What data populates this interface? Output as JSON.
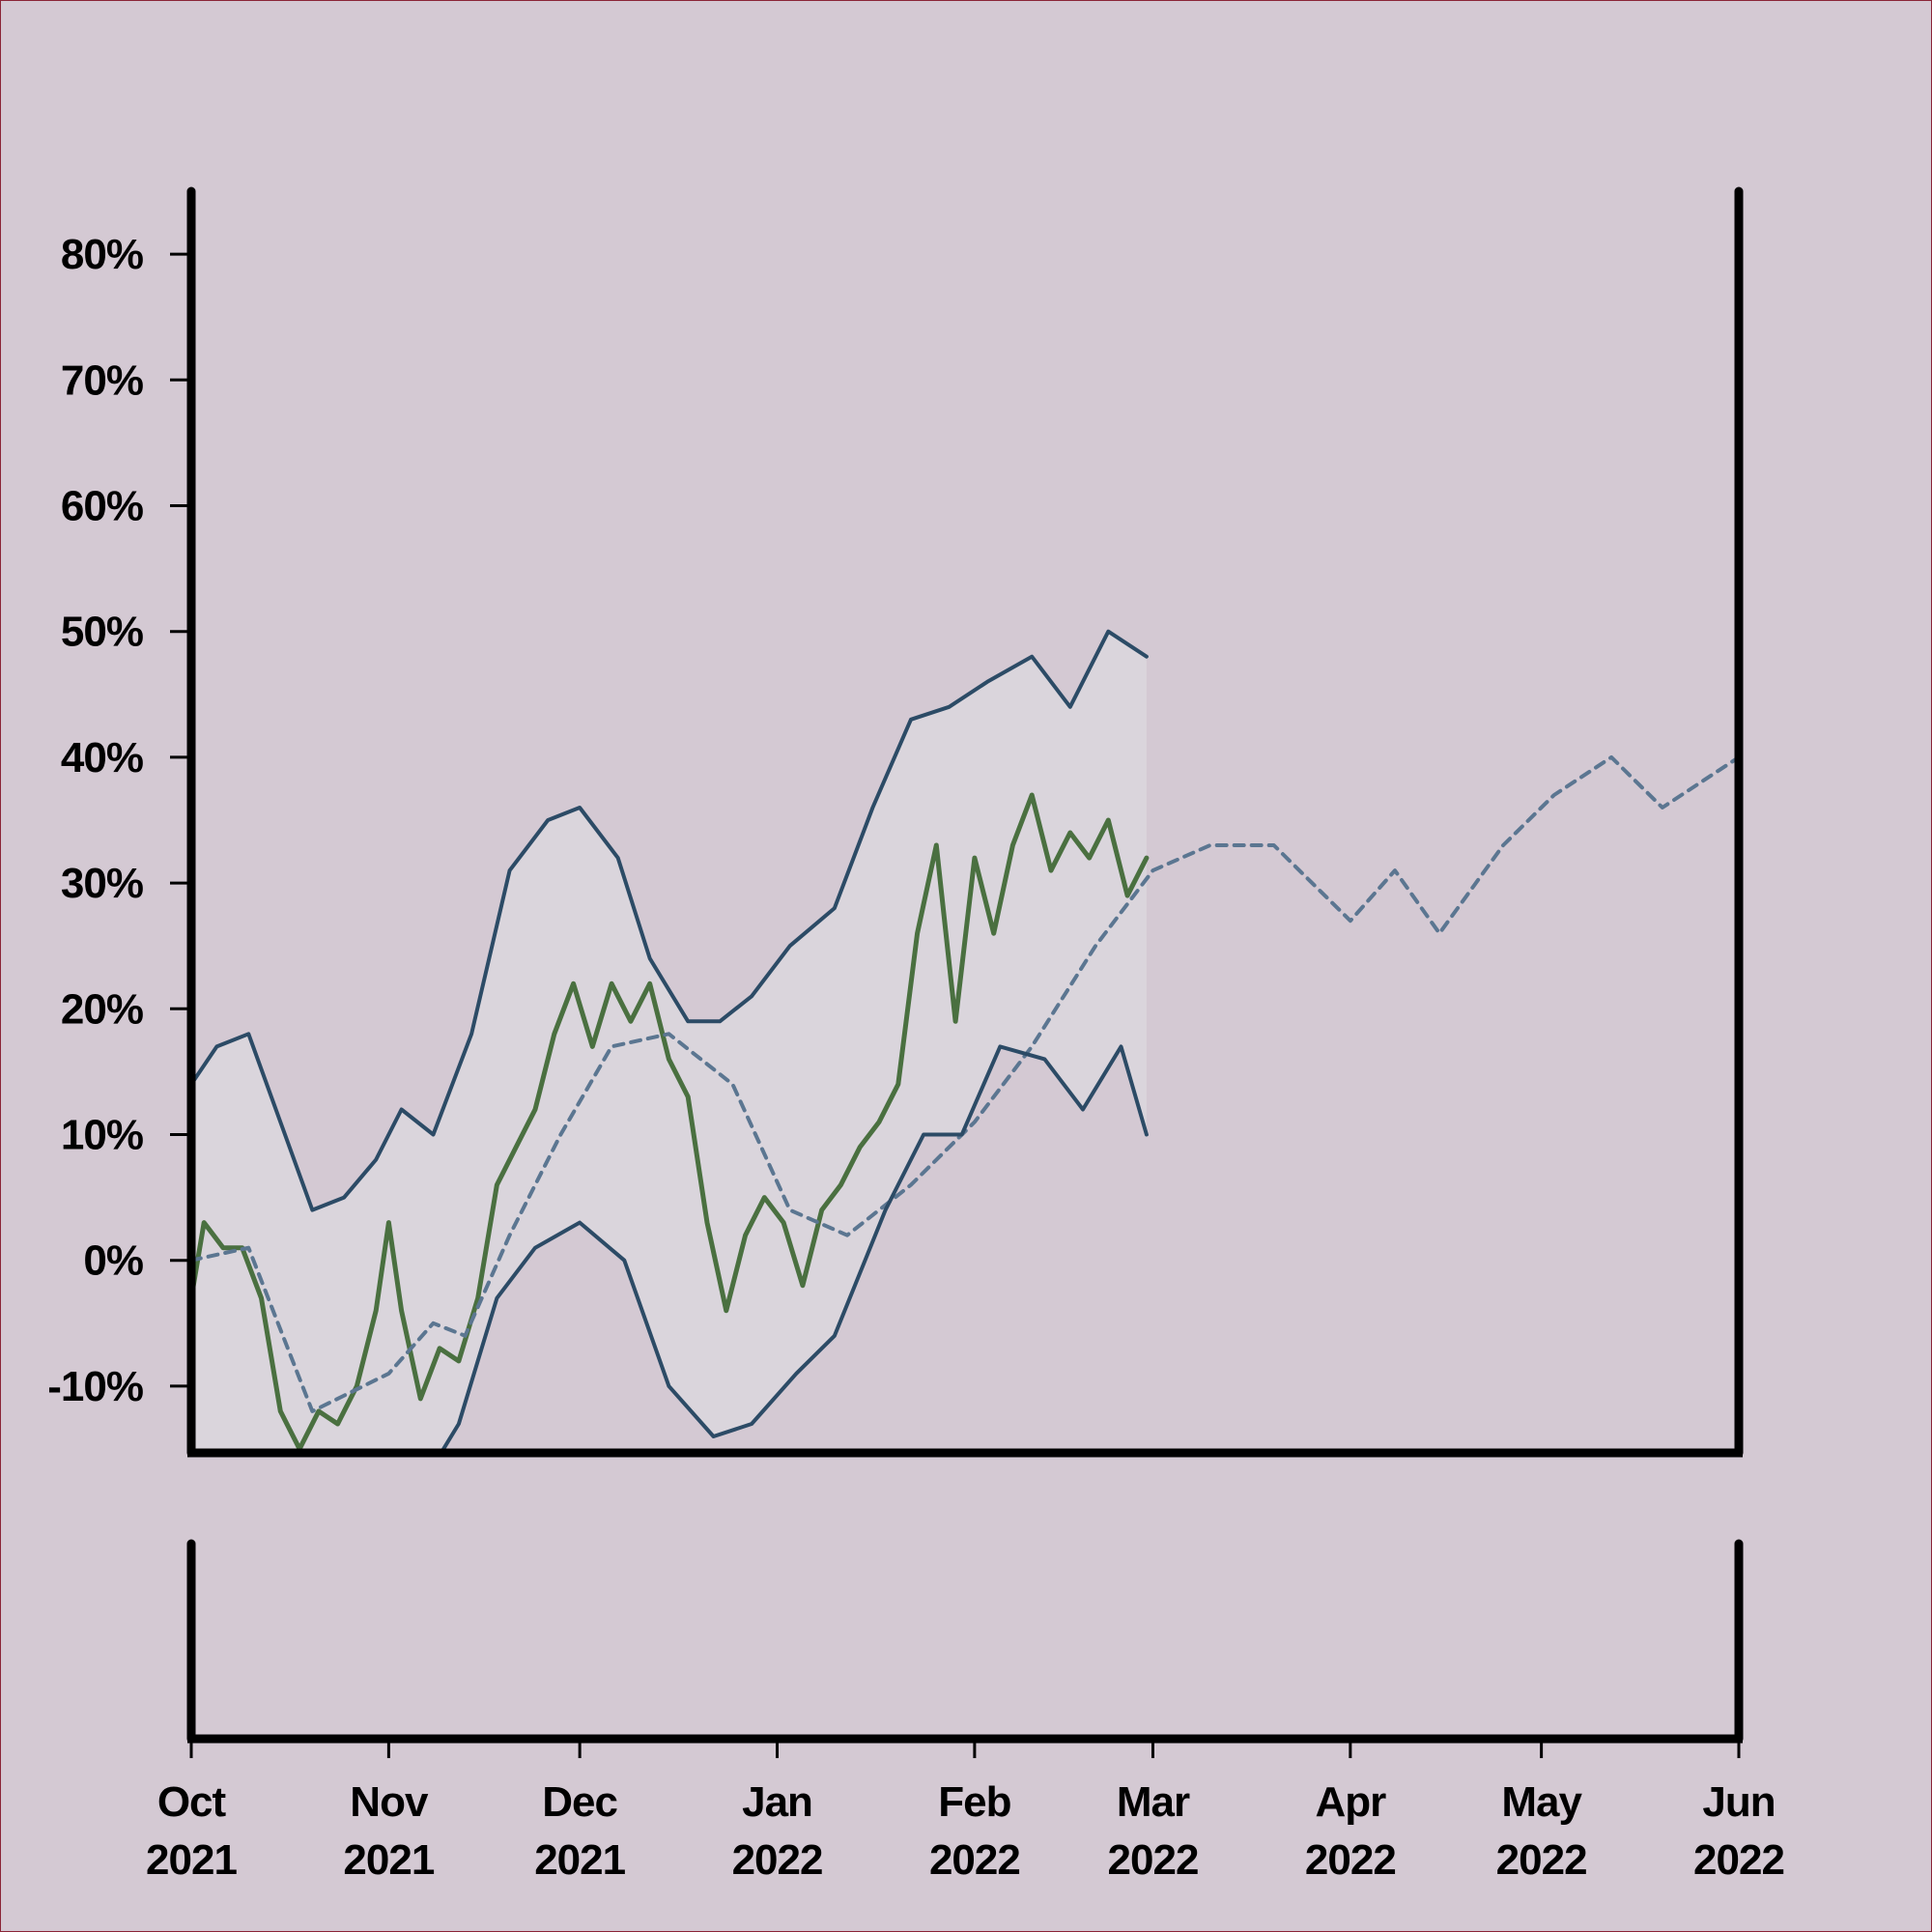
{
  "chart_data": {
    "type": "line",
    "title": "",
    "xlabel": "",
    "ylabel": "",
    "x_range": [
      "2021-10-01",
      "2022-06-01"
    ],
    "ylim": [
      -15,
      85
    ],
    "y_tick_values": [
      -10,
      0,
      10,
      20,
      30,
      40,
      50,
      60,
      70,
      80
    ],
    "y_tick_labels": [
      "-10%",
      "0%",
      "10%",
      "20%",
      "30%",
      "40%",
      "50%",
      "60%",
      "70%",
      "80%"
    ],
    "x_ticks": [
      {
        "date": "2021-10-01",
        "month": "Oct",
        "year": "2021"
      },
      {
        "date": "2021-11-01",
        "month": "Nov",
        "year": "2021"
      },
      {
        "date": "2021-12-01",
        "month": "Dec",
        "year": "2021"
      },
      {
        "date": "2022-01-01",
        "month": "Jan",
        "year": "2022"
      },
      {
        "date": "2022-02-01",
        "month": "Feb",
        "year": "2022"
      },
      {
        "date": "2022-03-01",
        "month": "Mar",
        "year": "2022"
      },
      {
        "date": "2022-04-01",
        "month": "Apr",
        "year": "2022"
      },
      {
        "date": "2022-05-01",
        "month": "May",
        "year": "2022"
      },
      {
        "date": "2022-06-01",
        "month": "Jun",
        "year": "2022"
      }
    ],
    "grid": false,
    "legend": "none",
    "series": [
      {
        "role": "value",
        "style": "solid",
        "color": "#4a7040",
        "points": [
          [
            "2021-10-01",
            -3
          ],
          [
            "2021-10-03",
            3
          ],
          [
            "2021-10-06",
            1
          ],
          [
            "2021-10-09",
            1
          ],
          [
            "2021-10-12",
            -3
          ],
          [
            "2021-10-15",
            -12
          ],
          [
            "2021-10-18",
            -15
          ],
          [
            "2021-10-21",
            -12
          ],
          [
            "2021-10-24",
            -13
          ],
          [
            "2021-10-27",
            -10
          ],
          [
            "2021-10-30",
            -4
          ],
          [
            "2021-11-01",
            3
          ],
          [
            "2021-11-03",
            -4
          ],
          [
            "2021-11-06",
            -11
          ],
          [
            "2021-11-09",
            -7
          ],
          [
            "2021-11-12",
            -8
          ],
          [
            "2021-11-15",
            -3
          ],
          [
            "2021-11-18",
            6
          ],
          [
            "2021-11-21",
            9
          ],
          [
            "2021-11-24",
            12
          ],
          [
            "2021-11-27",
            18
          ],
          [
            "2021-11-30",
            22
          ],
          [
            "2021-12-03",
            17
          ],
          [
            "2021-12-06",
            22
          ],
          [
            "2021-12-09",
            19
          ],
          [
            "2021-12-12",
            22
          ],
          [
            "2021-12-15",
            16
          ],
          [
            "2021-12-18",
            13
          ],
          [
            "2021-12-21",
            3
          ],
          [
            "2021-12-24",
            -4
          ],
          [
            "2021-12-27",
            2
          ],
          [
            "2021-12-30",
            5
          ],
          [
            "2022-01-02",
            3
          ],
          [
            "2022-01-05",
            -2
          ],
          [
            "2022-01-08",
            4
          ],
          [
            "2022-01-11",
            6
          ],
          [
            "2022-01-14",
            9
          ],
          [
            "2022-01-17",
            11
          ],
          [
            "2022-01-20",
            14
          ],
          [
            "2022-01-23",
            26
          ],
          [
            "2022-01-26",
            33
          ],
          [
            "2022-01-29",
            19
          ],
          [
            "2022-02-01",
            32
          ],
          [
            "2022-02-04",
            26
          ],
          [
            "2022-02-07",
            33
          ],
          [
            "2022-02-10",
            37
          ],
          [
            "2022-02-13",
            31
          ],
          [
            "2022-02-16",
            34
          ],
          [
            "2022-02-19",
            32
          ],
          [
            "2022-02-22",
            35
          ],
          [
            "2022-02-25",
            29
          ],
          [
            "2022-02-28",
            32
          ]
        ]
      },
      {
        "role": "moving-average",
        "style": "dashed",
        "color": "#5b7691",
        "points": [
          [
            "2021-10-01",
            0
          ],
          [
            "2021-10-10",
            1
          ],
          [
            "2021-10-20",
            -12
          ],
          [
            "2021-11-01",
            -9
          ],
          [
            "2021-11-08",
            -5
          ],
          [
            "2021-11-13",
            -6
          ],
          [
            "2021-11-20",
            2
          ],
          [
            "2021-11-28",
            10
          ],
          [
            "2021-12-06",
            17
          ],
          [
            "2021-12-15",
            18
          ],
          [
            "2021-12-25",
            14
          ],
          [
            "2022-01-03",
            4
          ],
          [
            "2022-01-12",
            2
          ],
          [
            "2022-01-22",
            6
          ],
          [
            "2022-02-01",
            11
          ],
          [
            "2022-02-10",
            17
          ],
          [
            "2022-02-20",
            25
          ],
          [
            "2022-03-01",
            31
          ],
          [
            "2022-03-10",
            33
          ],
          [
            "2022-03-20",
            33
          ],
          [
            "2022-04-01",
            27
          ],
          [
            "2022-04-08",
            31
          ],
          [
            "2022-04-15",
            26
          ],
          [
            "2022-04-25",
            33
          ],
          [
            "2022-05-03",
            37
          ],
          [
            "2022-05-12",
            40
          ],
          [
            "2022-05-20",
            36
          ],
          [
            "2022-06-01",
            40
          ]
        ]
      },
      {
        "role": "upper-band",
        "style": "solid",
        "color": "#2c4b66",
        "points": [
          [
            "2021-10-01",
            14
          ],
          [
            "2021-10-05",
            17
          ],
          [
            "2021-10-10",
            18
          ],
          [
            "2021-10-15",
            11
          ],
          [
            "2021-10-20",
            4
          ],
          [
            "2021-10-25",
            5
          ],
          [
            "2021-10-30",
            8
          ],
          [
            "2021-11-03",
            12
          ],
          [
            "2021-11-08",
            10
          ],
          [
            "2021-11-14",
            18
          ],
          [
            "2021-11-20",
            31
          ],
          [
            "2021-11-26",
            35
          ],
          [
            "2021-12-01",
            36
          ],
          [
            "2021-12-07",
            32
          ],
          [
            "2021-12-12",
            24
          ],
          [
            "2021-12-18",
            19
          ],
          [
            "2021-12-23",
            19
          ],
          [
            "2021-12-28",
            21
          ],
          [
            "2022-01-03",
            25
          ],
          [
            "2022-01-10",
            28
          ],
          [
            "2022-01-16",
            36
          ],
          [
            "2022-01-22",
            43
          ],
          [
            "2022-01-28",
            44
          ],
          [
            "2022-02-03",
            46
          ],
          [
            "2022-02-10",
            48
          ],
          [
            "2022-02-16",
            44
          ],
          [
            "2022-02-22",
            50
          ],
          [
            "2022-02-28",
            48
          ]
        ]
      },
      {
        "role": "lower-band",
        "style": "solid",
        "color": "#2c4b66",
        "points": [
          [
            "2021-10-01",
            -20
          ],
          [
            "2021-10-10",
            -17
          ],
          [
            "2021-10-20",
            -22
          ],
          [
            "2021-10-30",
            -20
          ],
          [
            "2021-11-06",
            -18
          ],
          [
            "2021-11-12",
            -13
          ],
          [
            "2021-11-18",
            -3
          ],
          [
            "2021-11-24",
            1
          ],
          [
            "2021-12-01",
            3
          ],
          [
            "2021-12-08",
            0
          ],
          [
            "2021-12-15",
            -10
          ],
          [
            "2021-12-22",
            -14
          ],
          [
            "2021-12-28",
            -13
          ],
          [
            "2022-01-04",
            -9
          ],
          [
            "2022-01-10",
            -6
          ],
          [
            "2022-01-18",
            4
          ],
          [
            "2022-01-24",
            10
          ],
          [
            "2022-01-30",
            10
          ],
          [
            "2022-02-05",
            17
          ],
          [
            "2022-02-12",
            16
          ],
          [
            "2022-02-18",
            12
          ],
          [
            "2022-02-24",
            17
          ],
          [
            "2022-02-28",
            10
          ]
        ]
      }
    ],
    "volume": {
      "type": "bar",
      "color": "#174313",
      "ylim": [
        0,
        140
      ],
      "daily_values": []
    }
  }
}
